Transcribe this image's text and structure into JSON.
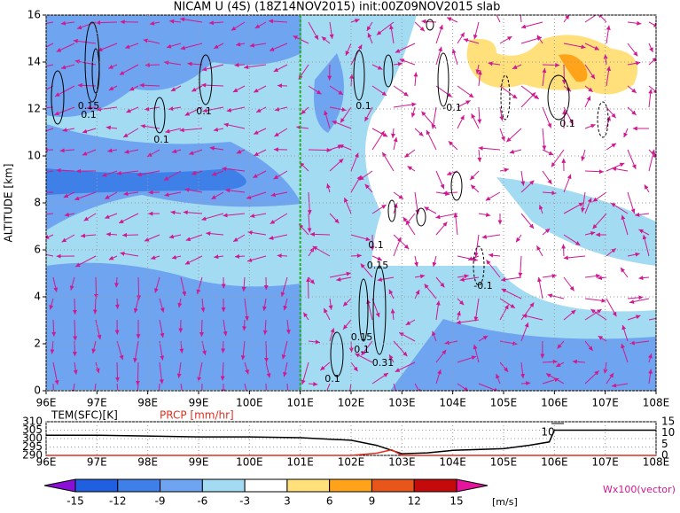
{
  "chart_data": {
    "type": "contour",
    "title": "NICAM U (4S) (18Z14NOV2015) init:00Z09NOV2015 slab",
    "y_label": "ALTITUDE [km]",
    "xlim": [
      96,
      108
    ],
    "ylim": [
      0,
      16
    ],
    "xticks": [
      {
        "value": 96,
        "label": "96E"
      },
      {
        "value": 97,
        "label": "97E"
      },
      {
        "value": 98,
        "label": "98E"
      },
      {
        "value": 99,
        "label": "99E"
      },
      {
        "value": 100,
        "label": "100E"
      },
      {
        "value": 101,
        "label": "101E"
      },
      {
        "value": 102,
        "label": "102E"
      },
      {
        "value": 103,
        "label": "103E"
      },
      {
        "value": 104,
        "label": "104E"
      },
      {
        "value": 105,
        "label": "105E"
      },
      {
        "value": 106,
        "label": "106E"
      },
      {
        "value": 107,
        "label": "107E"
      },
      {
        "value": 108,
        "label": "108E"
      }
    ],
    "yticks": [
      0,
      2,
      4,
      6,
      8,
      10,
      12,
      14,
      16
    ],
    "grid": true,
    "reference_line_x": 101,
    "reference_line_color": "#20b020",
    "contour_labels": [
      "0.15",
      "0.1",
      "0.1",
      "0.1",
      "0.1",
      "-0.1",
      "0.1",
      "0.1",
      "0.15",
      "-0.1",
      "0.15",
      "0.1",
      "0.31",
      "0.1"
    ],
    "colorbar": {
      "levels": [
        -15,
        -12,
        -9,
        -6,
        -3,
        3,
        6,
        9,
        12,
        15
      ],
      "colors": [
        "#8a10d8",
        "#1f5fe0",
        "#3f7fe8",
        "#6fa4f0",
        "#a3dcf2",
        "#ffffff",
        "#ffe07a",
        "#ffa31a",
        "#e8561a",
        "#c40a0a",
        "#e6149c"
      ],
      "unit": "[m/s]"
    },
    "vector_label": "Wx100(vector)",
    "surface": {
      "tem_label": "TEM(SFC)[K]",
      "prcp_label": "PRCP [mm/hr]",
      "ylim": [
        290,
        310
      ],
      "yticks": [
        290,
        295,
        300,
        305,
        310
      ],
      "y2lim": [
        0,
        15
      ],
      "y2ticks": [
        0,
        5,
        10,
        15
      ],
      "vector_scale_label": "10",
      "series": [
        {
          "name": "TEM",
          "color": "#000000",
          "x": [
            96,
            97,
            98,
            99,
            100,
            101,
            102,
            102.5,
            103,
            103.5,
            104,
            105,
            105.5,
            105.9,
            106,
            107,
            108
          ],
          "values": [
            302,
            302,
            301.5,
            301,
            301,
            300.5,
            299,
            296,
            291,
            291.5,
            293,
            294,
            296,
            298,
            305,
            305,
            305
          ]
        },
        {
          "name": "PRCP",
          "color": "#e03020",
          "axis": "y2",
          "x": [
            96,
            97,
            98,
            99,
            100,
            101,
            102,
            102.5,
            102.8,
            103,
            104,
            105,
            106,
            107,
            108
          ],
          "values": [
            0,
            0,
            0,
            0,
            0,
            0,
            0,
            1,
            2.5,
            0,
            0,
            0,
            0,
            0,
            0
          ]
        }
      ]
    }
  }
}
